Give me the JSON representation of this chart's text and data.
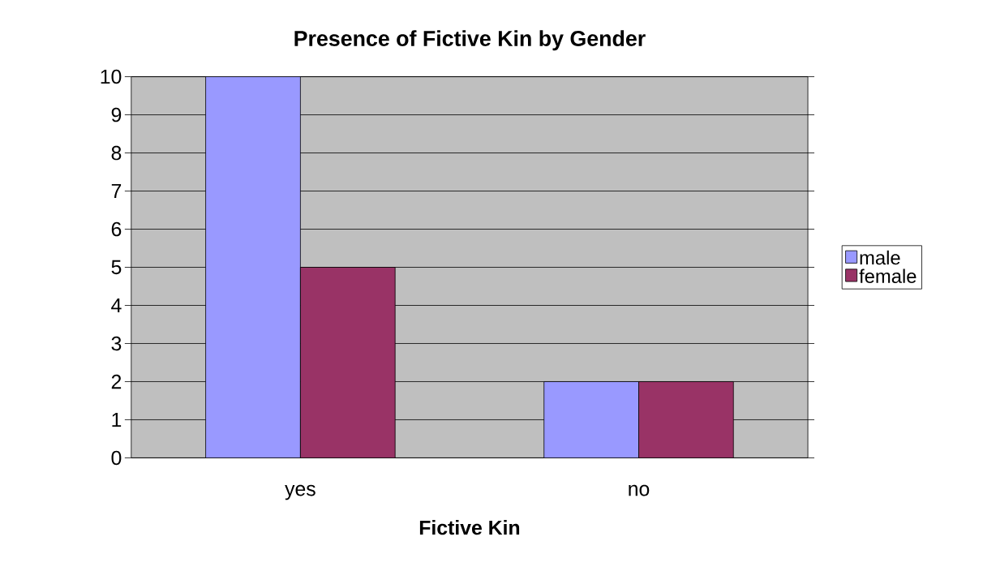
{
  "chart_data": {
    "type": "bar",
    "title": "Presence of Fictive Kin by Gender",
    "xlabel": "Fictive Kin",
    "categories": [
      "yes",
      "no"
    ],
    "series": [
      {
        "name": "male",
        "color": "#9999ff",
        "values": [
          10,
          2
        ]
      },
      {
        "name": "female",
        "color": "#993366",
        "values": [
          5,
          2
        ]
      }
    ],
    "ylim": [
      0,
      10
    ],
    "yticks": [
      0,
      1,
      2,
      3,
      4,
      5,
      6,
      7,
      8,
      9,
      10
    ],
    "grid": "y",
    "legend": "right"
  }
}
